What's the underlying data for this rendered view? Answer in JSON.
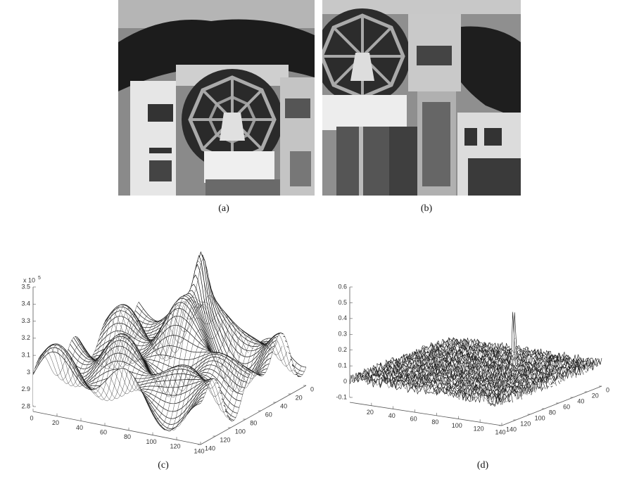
{
  "figure": {
    "panels": [
      {
        "label": "(a)"
      },
      {
        "label": "(b)"
      },
      {
        "label": "(c)",
        "z_ticks": [
          2.8,
          2.9,
          3,
          3.1,
          3.2,
          3.3,
          3.4,
          3.5
        ],
        "z_multiplier": "x 10",
        "z_exponent": "5",
        "x_ticks": [
          0,
          20,
          40,
          60,
          80,
          100,
          120,
          140
        ],
        "y_ticks": [
          0,
          20,
          40,
          60,
          80,
          100,
          120,
          140
        ]
      },
      {
        "label": "(d)",
        "z_ticks": [
          -0.1,
          0,
          0.1,
          0.2,
          0.3,
          0.4,
          0.5,
          0.6
        ],
        "x_ticks": [
          20,
          40,
          60,
          80,
          100,
          120,
          140
        ],
        "y_ticks": [
          0,
          20,
          40,
          60,
          80,
          100,
          120,
          140
        ]
      }
    ]
  }
}
